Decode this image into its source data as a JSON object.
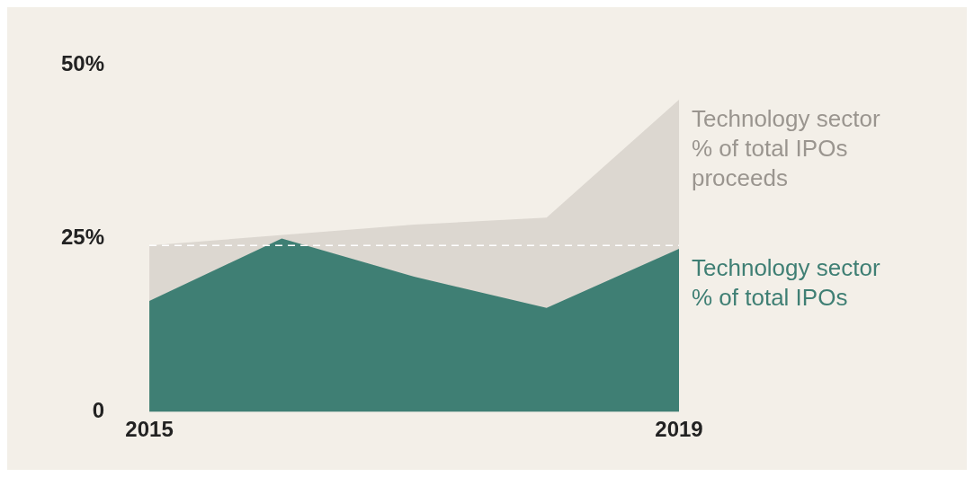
{
  "chart_data": {
    "type": "area",
    "x": [
      2015,
      2016,
      2017,
      2018,
      2019
    ],
    "xlim": [
      2015,
      2019
    ],
    "xticks": [
      2015,
      2019
    ],
    "ylim": [
      0,
      50
    ],
    "yticks": [
      0,
      {
        "value": 25,
        "label": "25%"
      },
      {
        "value": 50,
        "label": "50%"
      }
    ],
    "grid": false,
    "legend": false,
    "series": [
      {
        "name": "Technology sector % of total IPOs proceeds",
        "color": "#dcd7d0",
        "values": [
          24,
          null,
          27,
          28,
          45
        ]
      },
      {
        "name": "Technology sector % of total IPOs",
        "color": "#3f7f74",
        "values": [
          16,
          25,
          19.5,
          15,
          23.5
        ]
      }
    ],
    "ref_lines": [
      {
        "axis": "y",
        "value": 24,
        "color": "#ffffff",
        "line_style": "dashed"
      }
    ]
  }
}
